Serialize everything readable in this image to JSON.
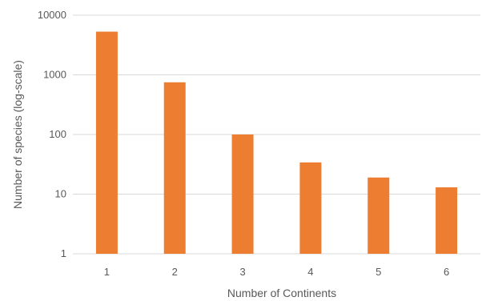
{
  "chart_data": {
    "type": "bar",
    "categories": [
      "1",
      "2",
      "3",
      "4",
      "5",
      "6"
    ],
    "values": [
      5300,
      750,
      100,
      34,
      19,
      13
    ],
    "title": "",
    "xlabel": "Number of Continents",
    "ylabel": "Number of species (log-scale)",
    "yscale": "log",
    "ylim": [
      1,
      10000
    ],
    "yticks": [
      "1",
      "10",
      "100",
      "1000",
      "10000"
    ],
    "grid": true,
    "legend": "none",
    "bar_color": "#ED7D31",
    "grid_color": "#D9D9D9",
    "text_color": "#595959"
  }
}
